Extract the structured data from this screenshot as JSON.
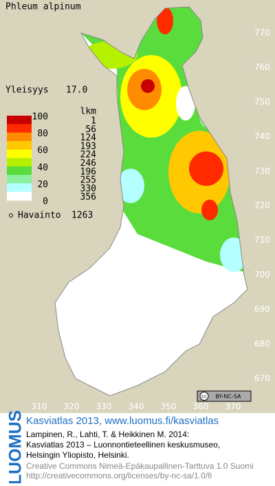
{
  "title": "Phleum alpinum",
  "frequency": {
    "label": "Yleisyys",
    "value": "17.0"
  },
  "legend": {
    "scale_labels": [
      100,
      80,
      60,
      40,
      20,
      0
    ],
    "colors": [
      "#c80000",
      "#ff2a00",
      "#ff8c00",
      "#ffc800",
      "#ffff00",
      "#b4f000",
      "#5adc3c",
      "#8cf0a0",
      "#b4ffff",
      "#ffffff"
    ],
    "count_header": "lkm",
    "counts": [
      1,
      56,
      124,
      193,
      224,
      246,
      196,
      255,
      330,
      356
    ]
  },
  "observations": {
    "label": "Havainto",
    "count": 1263
  },
  "x_ticks": [
    310,
    320,
    330,
    340,
    350,
    360,
    370
  ],
  "y_ticks": [
    670,
    680,
    690,
    700,
    710,
    720,
    730,
    740,
    750,
    760,
    770
  ],
  "license_badge": {
    "icon": "cc",
    "text": "BY-NC-SA"
  },
  "footer": {
    "logo": "LUOMUS",
    "link": "Kasviatlas 2013, www.luomus.fi/kasviatlas",
    "citation": [
      "Lampinen, R., Lahti, T. & Heikkinen M. 2014:",
      "Kasviatlas 2013 – Luonnontieteellinen keskusmuseo,",
      "Helsingin Yliopisto, Helsinki."
    ],
    "license": [
      "Creative Commons Nimeä-Epäkaupallinen-Tarttuva 1.0 Suomi",
      "http://creativecommons.org/licenses/by-nc-sa/1.0/fi"
    ]
  }
}
